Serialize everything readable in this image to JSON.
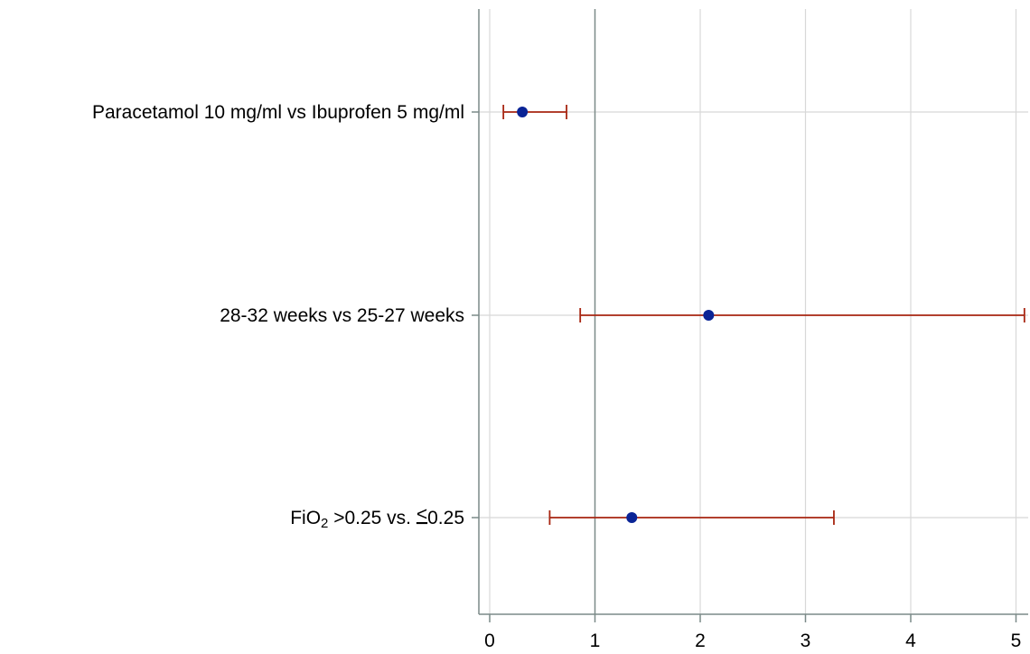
{
  "chart_data": {
    "type": "forest",
    "title": "",
    "xlabel": "",
    "ylabel": "",
    "xlim": [
      -0.1,
      5.1
    ],
    "x_ticks": [
      0,
      1,
      2,
      3,
      4,
      5
    ],
    "x_tick_labels": [
      "0",
      "1",
      "2",
      "3",
      "4",
      "5"
    ],
    "reference_line": 1,
    "grid": true,
    "rows": [
      {
        "label_parts": [
          {
            "text": "Paracetamol 10 mg/ml vs Ibuprofen 5 mg/ml"
          }
        ],
        "estimate": 0.31,
        "lower": 0.13,
        "upper": 0.73
      },
      {
        "label_parts": [
          {
            "text": "28-32 weeks vs 25-27 weeks"
          }
        ],
        "estimate": 2.08,
        "lower": 0.86,
        "upper": 5.08
      },
      {
        "label_parts": [
          {
            "text": "FiO"
          },
          {
            "text": "2",
            "style": "sub"
          },
          {
            "text": " >0.25 vs. "
          },
          {
            "text": "<",
            "style": "underline"
          },
          {
            "text": "0.25"
          }
        ],
        "estimate": 1.35,
        "lower": 0.57,
        "upper": 3.27
      }
    ],
    "colors": {
      "point": "#0a2496",
      "ci": "#a82612",
      "grid": "#d8d8d8",
      "reference": "#7b8a88",
      "axis": "#7b8a88"
    }
  }
}
